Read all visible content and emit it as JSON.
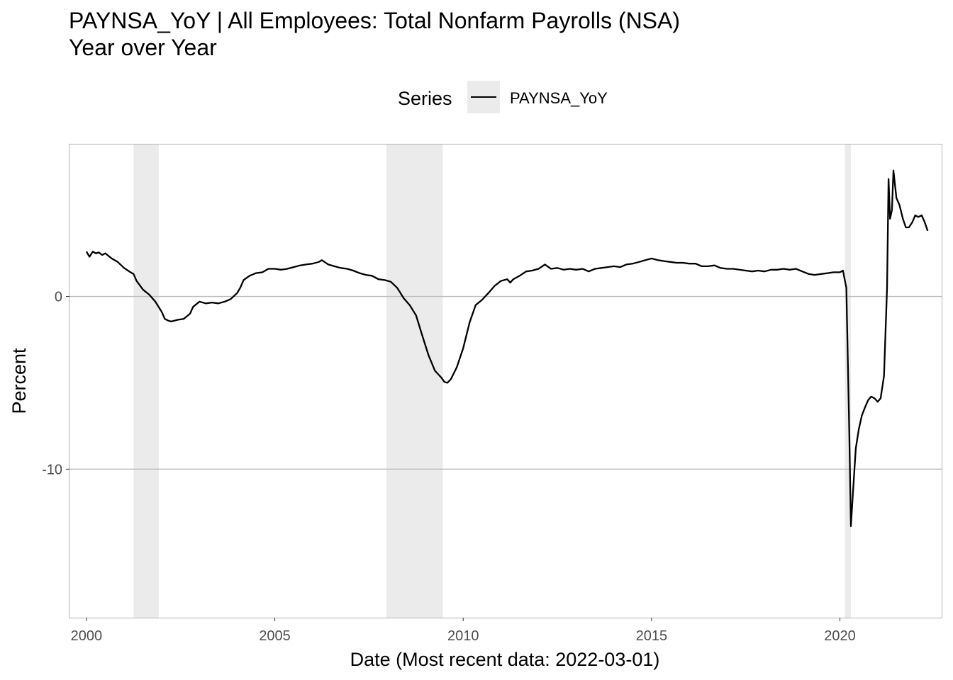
{
  "chart_data": {
    "type": "line",
    "title": "PAYNSA_YoY | All Employees: Total Nonfarm Payrolls (NSA)",
    "subtitle": "Year over Year",
    "xlabel": "Date (Most recent data: 2022-03-01)",
    "ylabel": "Percent",
    "legend": {
      "title": "Series",
      "placement": "top"
    },
    "x_ticks": [
      "2000",
      "2005",
      "2010",
      "2015",
      "2020"
    ],
    "y_ticks": [
      {
        "value": 0,
        "label": "0"
      },
      {
        "value": -10,
        "label": "-10"
      }
    ],
    "xlim": [
      1999.55,
      2022.7
    ],
    "ylim": [
      -18.6,
      8.8
    ],
    "grid": true,
    "recessions": [
      [
        2001.25,
        2001.92
      ],
      [
        2007.96,
        2009.46
      ],
      [
        2020.13,
        2020.29
      ]
    ],
    "series": [
      {
        "name": "PAYNSA_YoY",
        "color": "#000000",
        "points": [
          [
            2000.0,
            2.6
          ],
          [
            2000.08,
            2.3
          ],
          [
            2000.17,
            2.6
          ],
          [
            2000.25,
            2.5
          ],
          [
            2000.33,
            2.55
          ],
          [
            2000.42,
            2.4
          ],
          [
            2000.5,
            2.5
          ],
          [
            2000.67,
            2.2
          ],
          [
            2000.83,
            2.0
          ],
          [
            2001.0,
            1.65
          ],
          [
            2001.17,
            1.4
          ],
          [
            2001.25,
            1.3
          ],
          [
            2001.33,
            0.9
          ],
          [
            2001.5,
            0.4
          ],
          [
            2001.67,
            0.1
          ],
          [
            2001.83,
            -0.3
          ],
          [
            2002.0,
            -0.9
          ],
          [
            2002.08,
            -1.3
          ],
          [
            2002.17,
            -1.4
          ],
          [
            2002.25,
            -1.45
          ],
          [
            2002.42,
            -1.35
          ],
          [
            2002.58,
            -1.3
          ],
          [
            2002.75,
            -1.0
          ],
          [
            2002.83,
            -0.6
          ],
          [
            2003.0,
            -0.3
          ],
          [
            2003.17,
            -0.4
          ],
          [
            2003.33,
            -0.35
          ],
          [
            2003.5,
            -0.4
          ],
          [
            2003.67,
            -0.3
          ],
          [
            2003.83,
            -0.15
          ],
          [
            2004.0,
            0.2
          ],
          [
            2004.08,
            0.5
          ],
          [
            2004.17,
            0.95
          ],
          [
            2004.33,
            1.2
          ],
          [
            2004.5,
            1.35
          ],
          [
            2004.67,
            1.4
          ],
          [
            2004.83,
            1.6
          ],
          [
            2005.0,
            1.6
          ],
          [
            2005.17,
            1.55
          ],
          [
            2005.33,
            1.6
          ],
          [
            2005.5,
            1.7
          ],
          [
            2005.67,
            1.8
          ],
          [
            2005.83,
            1.85
          ],
          [
            2006.0,
            1.9
          ],
          [
            2006.17,
            2.0
          ],
          [
            2006.25,
            2.1
          ],
          [
            2006.42,
            1.85
          ],
          [
            2006.58,
            1.75
          ],
          [
            2006.75,
            1.65
          ],
          [
            2006.92,
            1.6
          ],
          [
            2007.08,
            1.5
          ],
          [
            2007.25,
            1.35
          ],
          [
            2007.42,
            1.25
          ],
          [
            2007.58,
            1.2
          ],
          [
            2007.75,
            1.0
          ],
          [
            2007.92,
            0.95
          ],
          [
            2008.08,
            0.85
          ],
          [
            2008.25,
            0.5
          ],
          [
            2008.42,
            -0.1
          ],
          [
            2008.58,
            -0.5
          ],
          [
            2008.75,
            -1.1
          ],
          [
            2008.92,
            -2.3
          ],
          [
            2009.08,
            -3.4
          ],
          [
            2009.25,
            -4.3
          ],
          [
            2009.42,
            -4.7
          ],
          [
            2009.5,
            -4.95
          ],
          [
            2009.58,
            -5.0
          ],
          [
            2009.67,
            -4.8
          ],
          [
            2009.83,
            -4.1
          ],
          [
            2010.0,
            -3.0
          ],
          [
            2010.17,
            -1.5
          ],
          [
            2010.33,
            -0.5
          ],
          [
            2010.5,
            -0.2
          ],
          [
            2010.67,
            0.2
          ],
          [
            2010.83,
            0.6
          ],
          [
            2011.0,
            0.9
          ],
          [
            2011.17,
            1.0
          ],
          [
            2011.25,
            0.8
          ],
          [
            2011.33,
            1.0
          ],
          [
            2011.5,
            1.2
          ],
          [
            2011.67,
            1.45
          ],
          [
            2011.83,
            1.5
          ],
          [
            2012.0,
            1.6
          ],
          [
            2012.17,
            1.85
          ],
          [
            2012.33,
            1.6
          ],
          [
            2012.5,
            1.65
          ],
          [
            2012.67,
            1.55
          ],
          [
            2012.83,
            1.6
          ],
          [
            2013.0,
            1.55
          ],
          [
            2013.17,
            1.6
          ],
          [
            2013.33,
            1.45
          ],
          [
            2013.5,
            1.6
          ],
          [
            2013.67,
            1.65
          ],
          [
            2013.83,
            1.7
          ],
          [
            2014.0,
            1.75
          ],
          [
            2014.17,
            1.7
          ],
          [
            2014.33,
            1.85
          ],
          [
            2014.5,
            1.9
          ],
          [
            2014.67,
            2.0
          ],
          [
            2014.83,
            2.1
          ],
          [
            2015.0,
            2.2
          ],
          [
            2015.17,
            2.1
          ],
          [
            2015.33,
            2.05
          ],
          [
            2015.5,
            2.0
          ],
          [
            2015.67,
            1.95
          ],
          [
            2015.83,
            1.95
          ],
          [
            2016.0,
            1.9
          ],
          [
            2016.17,
            1.9
          ],
          [
            2016.33,
            1.75
          ],
          [
            2016.5,
            1.75
          ],
          [
            2016.67,
            1.8
          ],
          [
            2016.83,
            1.65
          ],
          [
            2017.0,
            1.6
          ],
          [
            2017.17,
            1.6
          ],
          [
            2017.33,
            1.55
          ],
          [
            2017.5,
            1.5
          ],
          [
            2017.67,
            1.45
          ],
          [
            2017.83,
            1.5
          ],
          [
            2018.0,
            1.45
          ],
          [
            2018.17,
            1.55
          ],
          [
            2018.33,
            1.55
          ],
          [
            2018.5,
            1.6
          ],
          [
            2018.67,
            1.55
          ],
          [
            2018.83,
            1.6
          ],
          [
            2019.0,
            1.45
          ],
          [
            2019.17,
            1.3
          ],
          [
            2019.33,
            1.25
          ],
          [
            2019.5,
            1.3
          ],
          [
            2019.67,
            1.35
          ],
          [
            2019.83,
            1.4
          ],
          [
            2020.0,
            1.4
          ],
          [
            2020.08,
            1.5
          ],
          [
            2020.17,
            0.5
          ],
          [
            2020.25,
            -8.0
          ],
          [
            2020.29,
            -13.3
          ],
          [
            2020.33,
            -11.9
          ],
          [
            2020.42,
            -8.8
          ],
          [
            2020.5,
            -7.7
          ],
          [
            2020.58,
            -6.9
          ],
          [
            2020.67,
            -6.4
          ],
          [
            2020.75,
            -6.0
          ],
          [
            2020.83,
            -5.8
          ],
          [
            2020.92,
            -5.9
          ],
          [
            2021.0,
            -6.1
          ],
          [
            2021.08,
            -5.9
          ],
          [
            2021.17,
            -4.6
          ],
          [
            2021.25,
            0.5
          ],
          [
            2021.29,
            6.8
          ],
          [
            2021.33,
            4.5
          ],
          [
            2021.38,
            5.0
          ],
          [
            2021.42,
            7.3
          ],
          [
            2021.5,
            5.7
          ],
          [
            2021.58,
            5.3
          ],
          [
            2021.67,
            4.5
          ],
          [
            2021.75,
            4.0
          ],
          [
            2021.83,
            4.0
          ],
          [
            2021.92,
            4.3
          ],
          [
            2022.0,
            4.7
          ],
          [
            2022.08,
            4.6
          ],
          [
            2022.17,
            4.7
          ],
          [
            2022.25,
            4.3
          ],
          [
            2022.33,
            3.8
          ]
        ]
      }
    ]
  }
}
